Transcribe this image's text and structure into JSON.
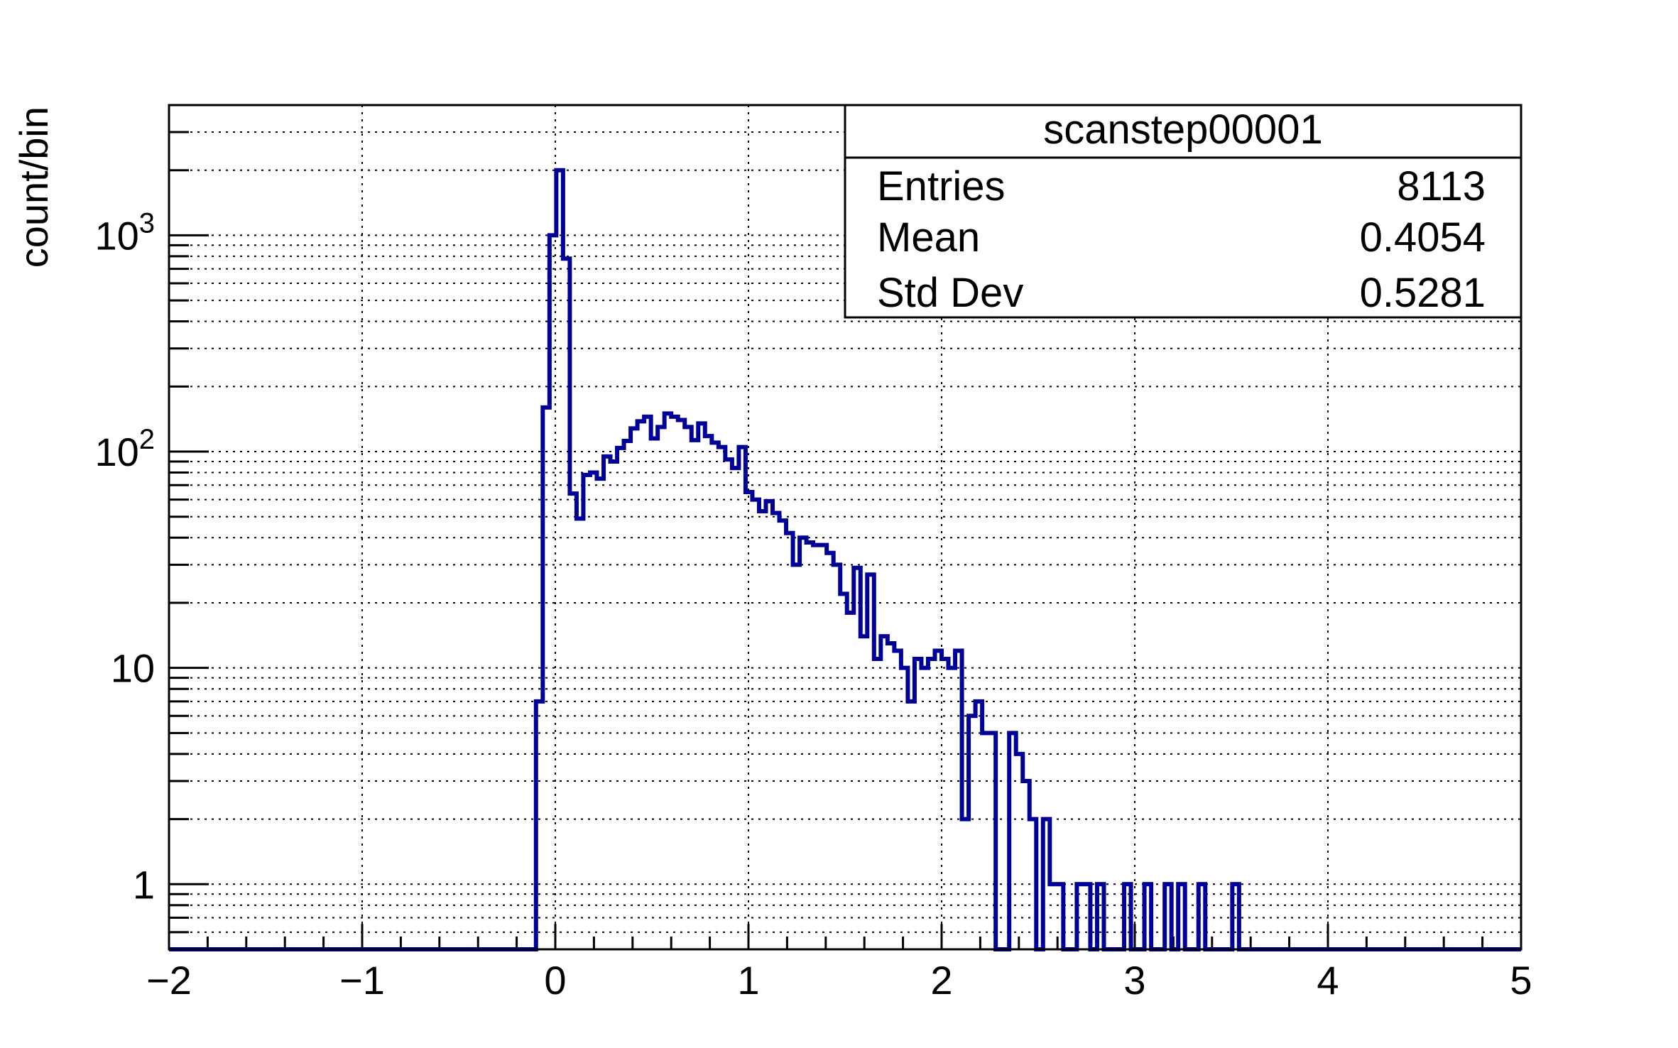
{
  "chart_data": {
    "type": "histogram",
    "title": "",
    "xlabel": "",
    "ylabel": "count/bin",
    "xlim": [
      -2,
      5
    ],
    "ylim": [
      0.5,
      4000
    ],
    "y_scale": "log",
    "grid": true,
    "x_ticks": [
      "−2",
      "−1",
      "0",
      "1",
      "2",
      "3",
      "4",
      "5"
    ],
    "y_ticks": [
      {
        "value": 1,
        "base": "1",
        "exp": ""
      },
      {
        "value": 10,
        "base": "10",
        "exp": ""
      },
      {
        "value": 100,
        "base": "10",
        "exp": "2"
      },
      {
        "value": 1000,
        "base": "10",
        "exp": "3"
      }
    ],
    "line_color": "#000099",
    "bin_width": 0.035,
    "x_start": -0.1,
    "counts": [
      7,
      160,
      1000,
      2000,
      780,
      64,
      49,
      78,
      80,
      75,
      95,
      90,
      104,
      112,
      128,
      138,
      145,
      115,
      130,
      150,
      145,
      140,
      130,
      113,
      135,
      118,
      110,
      105,
      92,
      84,
      105,
      65,
      60,
      53,
      59,
      52,
      48,
      42,
      30,
      40,
      38,
      37,
      37,
      34,
      30,
      22,
      18,
      29,
      14,
      27,
      11,
      14,
      13,
      12,
      10,
      7,
      11,
      10,
      11,
      12,
      11,
      10,
      12,
      2,
      6,
      7,
      5,
      5,
      0,
      0,
      5,
      4,
      3,
      2,
      0,
      2,
      1,
      1,
      0,
      0,
      1,
      1,
      0,
      1,
      0,
      0,
      0,
      1,
      0,
      0,
      1,
      0,
      0,
      1,
      0,
      1,
      0,
      0,
      1,
      0,
      0,
      0,
      0,
      1
    ],
    "stats": {
      "title": "scanstep00001",
      "rows": [
        {
          "label": "Entries",
          "value": "8113"
        },
        {
          "label": "Mean",
          "value": "0.4054"
        },
        {
          "label": "Std Dev",
          "value": "0.5281"
        }
      ]
    }
  }
}
